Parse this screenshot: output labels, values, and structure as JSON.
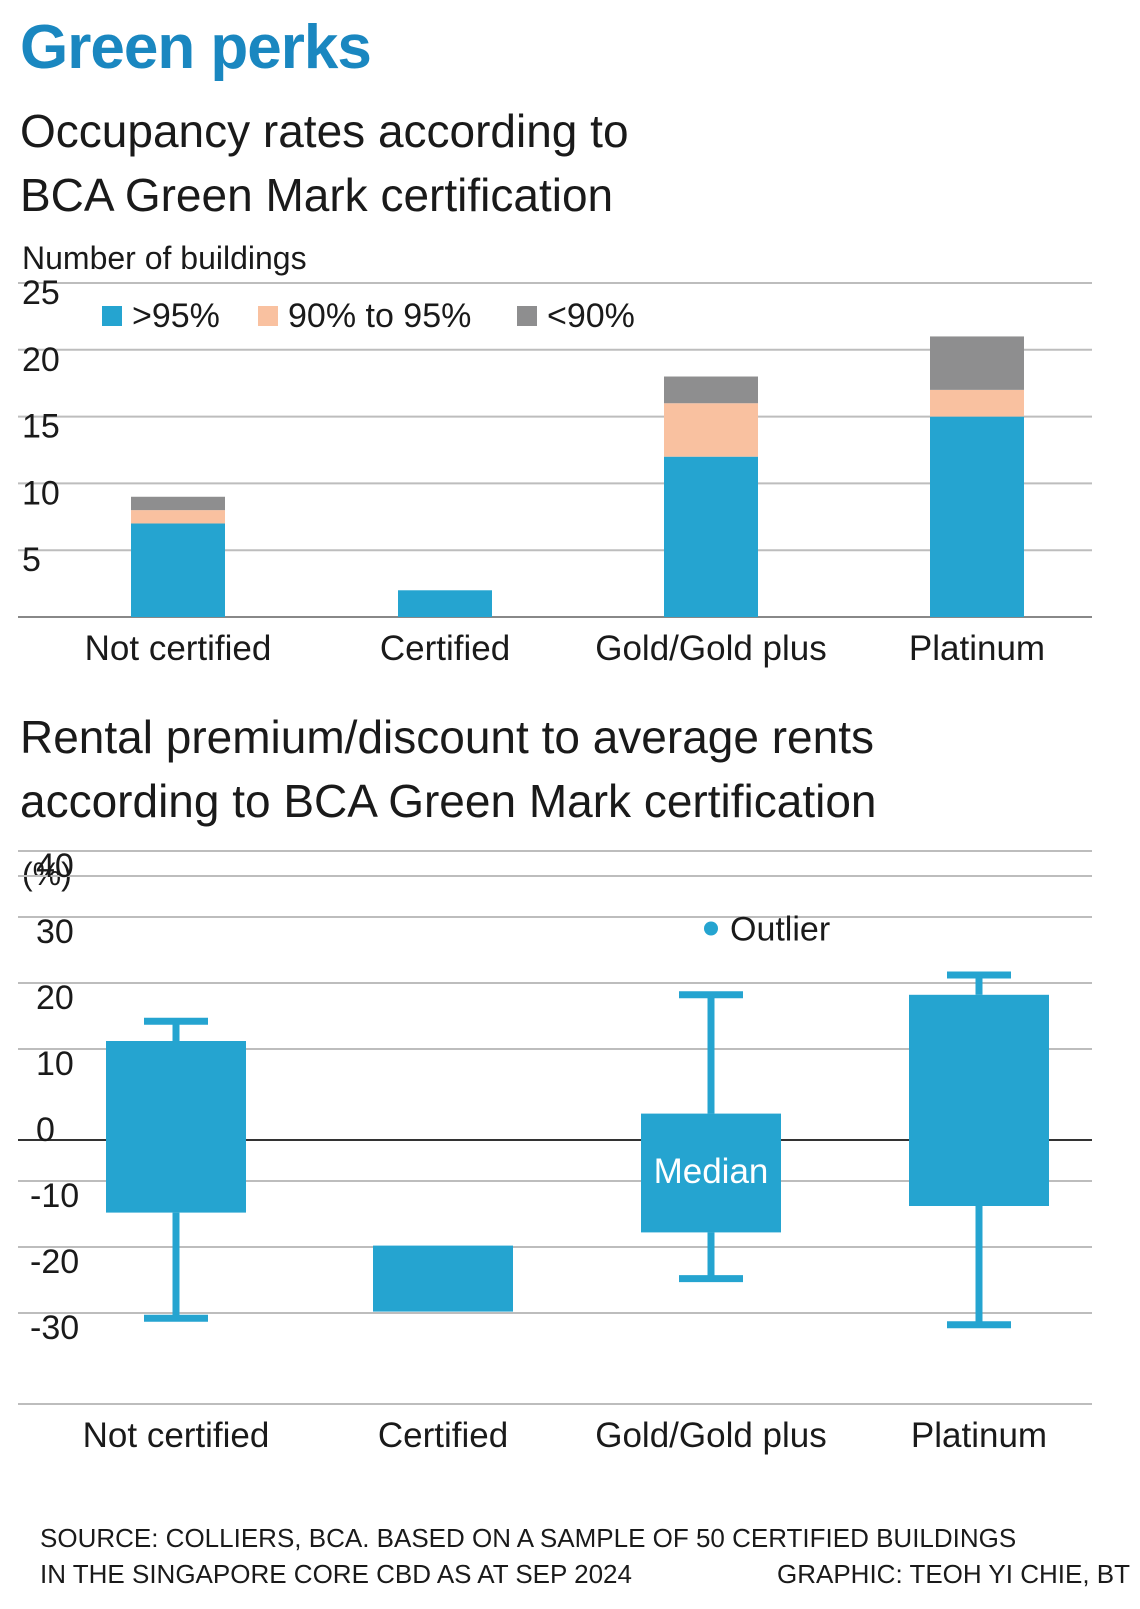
{
  "headline": "Green perks",
  "colors": {
    "headline": "#1a87c0",
    "bar_blue": "#25a4d0",
    "bar_peach": "#f9c1a0",
    "bar_grey": "#8e8e8f",
    "grid": "#bdbdbd",
    "zero_line": "#333333"
  },
  "chart_data": [
    {
      "type": "bar",
      "stacked": true,
      "title": "Occupancy rates according to BCA Green Mark certification",
      "ylabel": "Number of buildings",
      "ylim": [
        0,
        25
      ],
      "yticks": [
        5,
        10,
        15,
        20,
        25
      ],
      "categories": [
        "Not certified",
        "Certified",
        "Gold/Gold plus",
        "Platinum"
      ],
      "series": [
        {
          "name": ">95%",
          "color": "#25a4d0",
          "values": [
            7,
            2,
            12,
            15
          ]
        },
        {
          "name": "90% to 95%",
          "color": "#f9c1a0",
          "values": [
            1,
            0,
            4,
            2
          ]
        },
        {
          "name": "<90%",
          "color": "#8e8e8f",
          "values": [
            1,
            0,
            2,
            4
          ]
        }
      ],
      "legend_placement": "top-left",
      "grid": true
    },
    {
      "type": "box",
      "title": "Rental premium/discount to average rents according to BCA Green Mark certification",
      "ylabel": "(%)",
      "ylim": [
        -40,
        40
      ],
      "yticks": [
        40,
        30,
        20,
        10,
        0,
        -10,
        -20,
        -30
      ],
      "categories": [
        "Not certified",
        "Certified",
        "Gold/Gold plus",
        "Platinum"
      ],
      "boxes": [
        {
          "category": "Not certified",
          "whisker_low": -27,
          "q1": -11,
          "q3": 15,
          "whisker_high": 18
        },
        {
          "category": "Certified",
          "whisker_low": null,
          "q1": -26,
          "q3": -16,
          "whisker_high": null
        },
        {
          "category": "Gold/Gold plus",
          "whisker_low": -21,
          "q1": -14,
          "q3": 4,
          "whisker_high": 22
        },
        {
          "category": "Platinum",
          "whisker_low": -28,
          "q1": -10,
          "q3": 22,
          "whisker_high": 25
        }
      ],
      "outliers": [
        {
          "category": "Gold/Gold plus",
          "value": 32.5
        }
      ],
      "annotations": {
        "outlier_label": "Outlier",
        "median_label": "Median"
      },
      "grid": true
    }
  ],
  "footer": {
    "source_line1": "SOURCE: COLLIERS, BCA. BASED ON A SAMPLE OF 50 CERTIFIED BUILDINGS",
    "source_line2": "IN THE SINGAPORE CORE CBD AS AT SEP 2024",
    "credit": "GRAPHIC: TEOH YI CHIE, BT"
  }
}
